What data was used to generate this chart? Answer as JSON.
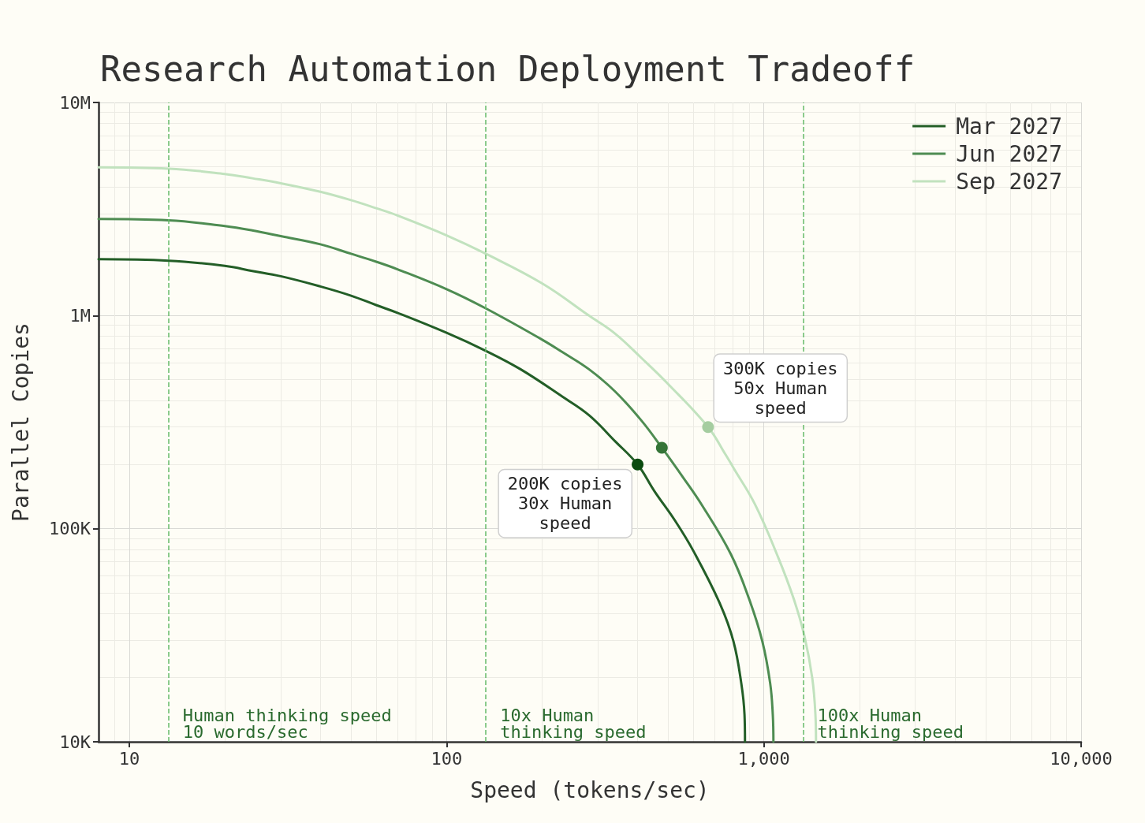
{
  "chart_data": {
    "type": "line",
    "title": "Research Automation Deployment Tradeoff",
    "xlabel": "Speed (tokens/sec)",
    "ylabel": "Parallel Copies",
    "log": "xy",
    "xlim": [
      8,
      10000
    ],
    "ylim": [
      10000,
      10000000
    ],
    "xticks": [
      10,
      100,
      {
        "value": 1000,
        "label": "1,000"
      },
      {
        "value": 10000,
        "label": "10,000"
      }
    ],
    "yticks": [
      {
        "value": 10000,
        "label": "10K"
      },
      {
        "value": 100000,
        "label": "100K"
      },
      {
        "value": 1000000,
        "label": "1M"
      },
      {
        "value": 10000000,
        "label": "10M"
      }
    ],
    "grid": true,
    "legend": "top right",
    "marker": "none",
    "line_style": "solid",
    "series": [
      {
        "name": "Mar 2027",
        "color": "#235e27",
        "x": [
          8,
          13.3,
          20,
          24.4,
          30,
          40,
          50,
          60,
          70,
          100,
          133,
          171,
          232,
          281,
          340,
          400,
          452,
          525,
          602,
          729,
          802,
          849,
          869,
          872
        ],
        "values": [
          1840000,
          1810000,
          1710000,
          1620000,
          1530000,
          1370000,
          1240000,
          1120000,
          1030000,
          830000,
          683000,
          560000,
          416000,
          341000,
          257000,
          200000,
          150000,
          109000,
          77800,
          44100,
          29600,
          18800,
          13400,
          10000
        ]
      },
      {
        "name": "Jun 2027",
        "color": "#4e8c52",
        "x": [
          8,
          13.3,
          20,
          24.4,
          30,
          40,
          50,
          60,
          70,
          100,
          133,
          200,
          232,
          281,
          340,
          411,
          477,
          558,
          638,
          787,
          899,
          989,
          1047,
          1067,
          1072
        ],
        "values": [
          2840000,
          2800000,
          2630000,
          2510000,
          2360000,
          2160000,
          1950000,
          1790000,
          1650000,
          1330000,
          1080000,
          771000,
          673000,
          560000,
          440000,
          322000,
          240000,
          173000,
          129000,
          75900,
          46700,
          29600,
          18800,
          13400,
          10000
        ]
      },
      {
        "name": "Sep 2027",
        "color": "#c1e2be",
        "x": [
          8,
          13.3,
          20,
          24.4,
          30,
          40,
          50,
          60,
          70,
          100,
          133,
          201,
          281,
          340,
          411,
          498,
          667,
          757,
          802,
          938,
          1109,
          1243,
          1342,
          1421,
          1454,
          1460
        ],
        "values": [
          4960000,
          4890000,
          4620000,
          4410000,
          4180000,
          3810000,
          3480000,
          3190000,
          2950000,
          2380000,
          1950000,
          1410000,
          1000000,
          822000,
          633000,
          479000,
          300000,
          223000,
          193000,
          130000,
          73500,
          46700,
          31400,
          19900,
          13400,
          10000
        ]
      },
      {
        "type": "scatter",
        "marker": "circle",
        "color": "#0a4b0f",
        "x": [
          400
        ],
        "values": [
          200000
        ]
      },
      {
        "type": "scatter",
        "marker": "circle",
        "color": "#357538",
        "x": [
          477
        ],
        "values": [
          240000
        ]
      },
      {
        "type": "scatter",
        "marker": "circle",
        "color": "#a5cda0",
        "x": [
          667
        ],
        "values": [
          300000
        ]
      }
    ],
    "ref_lines": [
      {
        "axis": "x",
        "value": 13.3,
        "label": "Human thinking speed\n10 words/sec",
        "color": "#66bb6a",
        "line_style": "dashed"
      },
      {
        "axis": "x",
        "value": 133,
        "label": "10x Human\nthinking speed",
        "color": "#66bb6a",
        "line_style": "dashed"
      },
      {
        "axis": "x",
        "value": 1330,
        "label": "100x Human\nthinking speed",
        "color": "#66bb6a",
        "line_style": "dashed"
      }
    ],
    "annotations": [
      {
        "text": "200K copies\n30x Human\nspeed",
        "x": 400,
        "y": 200000
      },
      {
        "text": "300K copies\n50x Human\nspeed",
        "x": 667,
        "y": 300000
      }
    ]
  }
}
